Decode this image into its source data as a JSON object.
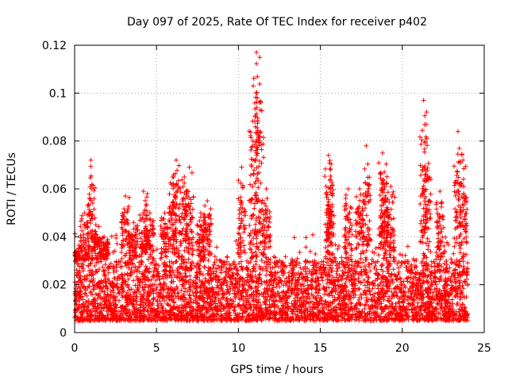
{
  "chart_data": {
    "type": "scatter",
    "title": "Day 097 of 2025, Rate Of TEC Index for receiver p402",
    "xlabel": "GPS time / hours",
    "ylabel": "ROTI / TECUs",
    "xlim": [
      0,
      25
    ],
    "ylim": [
      0,
      0.12
    ],
    "x_ticks": [
      0,
      5,
      10,
      15,
      20,
      25
    ],
    "x_tick_labels": [
      "0",
      "5",
      "10",
      "15",
      "20",
      "25"
    ],
    "y_ticks": [
      0,
      0.02,
      0.04,
      0.06,
      0.08,
      0.1,
      0.12
    ],
    "y_tick_labels": [
      "0",
      "0.02",
      "0.04",
      "0.06",
      "0.08",
      "0.1",
      "0.12"
    ],
    "grid": true,
    "marker": "+",
    "color": "#ff0000",
    "x_data_range": [
      0,
      24
    ],
    "baseline_band": [
      0.005,
      0.03
    ],
    "spikes": [
      {
        "x": 0.1,
        "y": 0.034
      },
      {
        "x": 0.6,
        "y": 0.05
      },
      {
        "x": 1.0,
        "y": 0.072
      },
      {
        "x": 1.3,
        "y": 0.045
      },
      {
        "x": 1.8,
        "y": 0.04
      },
      {
        "x": 3.1,
        "y": 0.057
      },
      {
        "x": 3.6,
        "y": 0.046
      },
      {
        "x": 4.2,
        "y": 0.059
      },
      {
        "x": 4.6,
        "y": 0.05
      },
      {
        "x": 5.5,
        "y": 0.05
      },
      {
        "x": 6.0,
        "y": 0.065
      },
      {
        "x": 6.2,
        "y": 0.072
      },
      {
        "x": 6.7,
        "y": 0.065
      },
      {
        "x": 7.0,
        "y": 0.069
      },
      {
        "x": 7.7,
        "y": 0.05
      },
      {
        "x": 8.1,
        "y": 0.055
      },
      {
        "x": 10.2,
        "y": 0.069
      },
      {
        "x": 10.9,
        "y": 0.103
      },
      {
        "x": 11.1,
        "y": 0.117
      },
      {
        "x": 11.3,
        "y": 0.115
      },
      {
        "x": 11.7,
        "y": 0.06
      },
      {
        "x": 15.5,
        "y": 0.074
      },
      {
        "x": 15.6,
        "y": 0.064
      },
      {
        "x": 16.7,
        "y": 0.06
      },
      {
        "x": 17.4,
        "y": 0.06
      },
      {
        "x": 17.8,
        "y": 0.078
      },
      {
        "x": 18.8,
        "y": 0.075
      },
      {
        "x": 18.9,
        "y": 0.067
      },
      {
        "x": 19.3,
        "y": 0.061
      },
      {
        "x": 21.3,
        "y": 0.097
      },
      {
        "x": 21.5,
        "y": 0.081
      },
      {
        "x": 22.3,
        "y": 0.059
      },
      {
        "x": 23.4,
        "y": 0.084
      },
      {
        "x": 23.7,
        "y": 0.072
      }
    ]
  }
}
